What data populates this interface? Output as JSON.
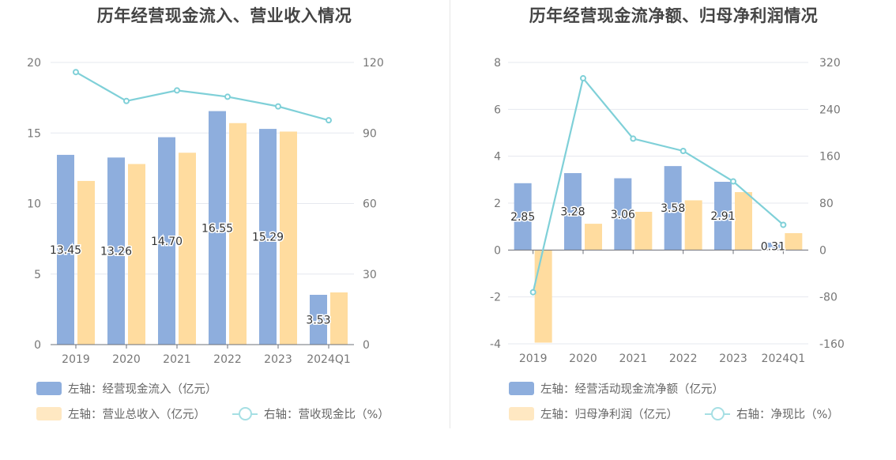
{
  "charts": {
    "left": {
      "title": "历年经营现金流入、营业收入情况",
      "legend": [
        {
          "label": "左轴：经营现金流入（亿元）",
          "color": "#8eaedd",
          "kind": "bar"
        },
        {
          "label": "左轴：营业总收入（亿元）",
          "color": "#ffe3b3",
          "kind": "bar"
        },
        {
          "label": "右轴：营收现金比（%）",
          "color": "#7fd0d8",
          "kind": "line"
        }
      ]
    },
    "right": {
      "title": "历年经营现金流净额、归母净利润情况",
      "legend": [
        {
          "label": "左轴：经营活动现金流净额（亿元）",
          "color": "#8eaedd",
          "kind": "bar"
        },
        {
          "label": "左轴：归母净利润（亿元）",
          "color": "#ffe3b3",
          "kind": "bar"
        },
        {
          "label": "右轴：净现比（%）",
          "color": "#7fd0d8",
          "kind": "line"
        }
      ]
    }
  },
  "chart_data": [
    {
      "type": "bar",
      "title": "历年经营现金流入、营业收入情况",
      "categories": [
        "2019",
        "2020",
        "2021",
        "2022",
        "2023",
        "2024Q1"
      ],
      "y_left": {
        "ticks": [
          "0",
          "5",
          "10",
          "15",
          "20"
        ],
        "range": [
          0,
          20
        ]
      },
      "y_right": {
        "ticks": [
          "0",
          "30",
          "60",
          "90",
          "120"
        ],
        "range": [
          0,
          120
        ]
      },
      "grid": true,
      "legend_position": "bottom-left",
      "colors": {
        "bar1": "#8eaedd",
        "bar2": "#ffdc9f",
        "line": "#7fd0d8"
      },
      "series": [
        {
          "name": "经营现金流入（亿元）",
          "axis": "left",
          "kind": "bar",
          "values": [
            13.45,
            13.26,
            14.7,
            16.55,
            15.29,
            3.53
          ],
          "labels": [
            "13.45",
            "13.26",
            "14.70",
            "16.55",
            "15.29",
            "3.53"
          ]
        },
        {
          "name": "营业总收入（亿元）",
          "axis": "left",
          "kind": "bar",
          "values": [
            11.6,
            12.8,
            13.6,
            15.7,
            15.1,
            3.7
          ]
        },
        {
          "name": "营收现金比（%）",
          "axis": "right",
          "kind": "line",
          "values": [
            115.9,
            103.6,
            108.1,
            105.4,
            101.3,
            95.4
          ]
        }
      ]
    },
    {
      "type": "bar",
      "title": "历年经营现金流净额、归母净利润情况",
      "categories": [
        "2019",
        "2020",
        "2021",
        "2022",
        "2023",
        "2024Q1"
      ],
      "y_left": {
        "ticks": [
          "-4",
          "-2",
          "0",
          "2",
          "4",
          "6",
          "8"
        ],
        "range": [
          -4,
          8
        ]
      },
      "y_right": {
        "ticks": [
          "-160",
          "-80",
          "0",
          "80",
          "160",
          "240",
          "320"
        ],
        "range": [
          -160,
          320
        ]
      },
      "grid": true,
      "legend_position": "bottom-left",
      "colors": {
        "bar1": "#8eaedd",
        "bar2": "#ffdc9f",
        "line": "#7fd0d8"
      },
      "series": [
        {
          "name": "经营活动现金流净额（亿元）",
          "axis": "left",
          "kind": "bar",
          "values": [
            2.85,
            3.28,
            3.06,
            3.58,
            2.91,
            0.31
          ],
          "labels": [
            "2.85",
            "3.28",
            "3.06",
            "3.58",
            "2.91",
            "0.31"
          ]
        },
        {
          "name": "归母净利润（亿元）",
          "axis": "left",
          "kind": "bar",
          "values": [
            -3.95,
            1.12,
            1.63,
            2.12,
            2.47,
            0.72
          ]
        },
        {
          "name": "净现比（%）",
          "axis": "right",
          "kind": "line",
          "values": [
            -72,
            293,
            190,
            169,
            117,
            43
          ]
        }
      ]
    }
  ]
}
